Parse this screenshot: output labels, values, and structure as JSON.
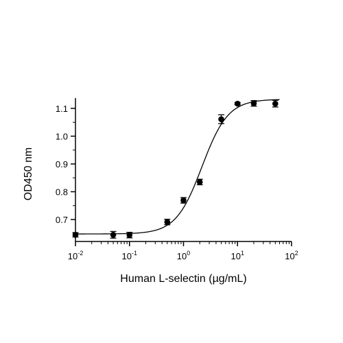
{
  "chart_data": {
    "type": "scatter",
    "title": "",
    "xlabel": "Human L-selectin (µg/mL)",
    "ylabel": "OD450 nm",
    "x_scale": "log",
    "xlim": [
      0.01,
      100
    ],
    "ylim": [
      0.63,
      1.14
    ],
    "x_ticks": [
      {
        "base": "10",
        "exp": "-2",
        "value": 0.01
      },
      {
        "base": "10",
        "exp": "-1",
        "value": 0.1
      },
      {
        "base": "10",
        "exp": "0",
        "value": 1
      },
      {
        "base": "10",
        "exp": "1",
        "value": 10
      },
      {
        "base": "10",
        "exp": "2",
        "value": 100
      }
    ],
    "y_ticks": [
      {
        "label": "0.7",
        "value": 0.7
      },
      {
        "label": "0.8",
        "value": 0.8
      },
      {
        "label": "0.9",
        "value": 0.9
      },
      {
        "label": "1.0",
        "value": 1.0
      },
      {
        "label": "1.1",
        "value": 1.1
      }
    ],
    "grid": false,
    "points": [
      {
        "x": 0.01,
        "y": 0.645,
        "err": 0.008
      },
      {
        "x": 0.05,
        "y": 0.645,
        "err": 0.012
      },
      {
        "x": 0.1,
        "y": 0.644,
        "err": 0.01
      },
      {
        "x": 0.5,
        "y": 0.691,
        "err": 0.01
      },
      {
        "x": 1,
        "y": 0.769,
        "err": 0.01
      },
      {
        "x": 2,
        "y": 0.835,
        "err": 0.01
      },
      {
        "x": 5,
        "y": 1.061,
        "err": 0.016
      },
      {
        "x": 10,
        "y": 1.117,
        "err": 0.004
      },
      {
        "x": 20,
        "y": 1.118,
        "err": 0.01
      },
      {
        "x": 50,
        "y": 1.117,
        "err": 0.012
      }
    ],
    "fit_curve": {
      "model": "4PL",
      "bottom": 0.648,
      "top": 1.133,
      "ec50": 2.2,
      "hill": 1.8
    },
    "marker_color": "#000000",
    "curve_color": "#000000"
  }
}
